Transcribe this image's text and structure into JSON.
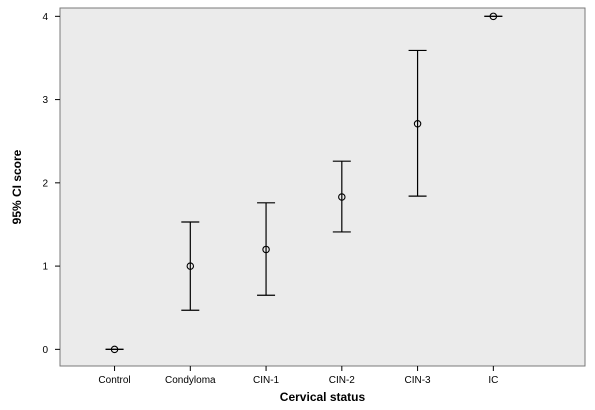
{
  "chart_data": {
    "type": "scatter",
    "subtype": "error-bar",
    "categories": [
      "Control",
      "Condyloma",
      "CIN-1",
      "CIN-2",
      "CIN-3",
      "IC"
    ],
    "series": [
      {
        "mean": [
          0.0,
          1.0,
          1.2,
          1.83,
          2.71,
          4.0
        ],
        "lower": [
          0.0,
          0.47,
          0.65,
          1.41,
          1.84,
          4.0
        ],
        "upper": [
          0.0,
          1.53,
          1.76,
          2.26,
          3.59,
          4.0
        ]
      }
    ],
    "xlabel": "Cervical status",
    "ylabel": "95% CI score",
    "ylim": [
      -0.2,
      4.1
    ],
    "yticks": [
      "0",
      "1",
      "2",
      "3",
      "4"
    ],
    "grid": false,
    "colors": {
      "plot_background": "#ebebeb",
      "marks": "#000000",
      "page_background": "#ffffff"
    }
  }
}
